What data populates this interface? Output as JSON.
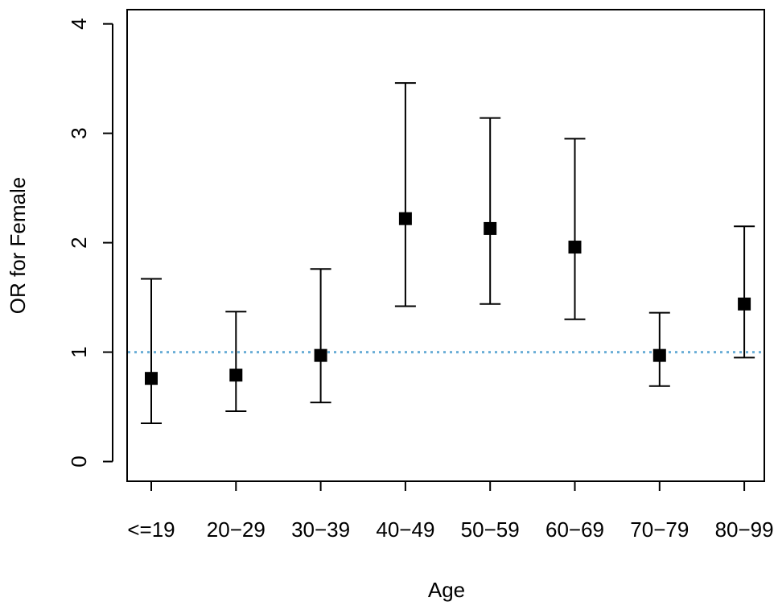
{
  "chart_data": {
    "type": "errorbar",
    "x_label": "Age",
    "y_label": "OR for Female",
    "categories": [
      "<=19",
      "20−29",
      "30−39",
      "40−49",
      "50−59",
      "60−69",
      "70−79",
      "80−99"
    ],
    "values": [
      0.76,
      0.79,
      0.97,
      2.22,
      2.13,
      1.96,
      0.97,
      1.44
    ],
    "lower": [
      0.35,
      0.46,
      0.54,
      1.42,
      1.44,
      1.3,
      0.69,
      0.95
    ],
    "upper": [
      1.67,
      1.37,
      1.76,
      3.46,
      3.14,
      2.95,
      1.36,
      2.15
    ],
    "color": "#000000",
    "ylim": [
      -0.18,
      4.13
    ],
    "yticks": [
      0,
      1,
      2,
      3,
      4
    ],
    "reference_line": {
      "value": 1,
      "color": "#6aaed6"
    }
  }
}
